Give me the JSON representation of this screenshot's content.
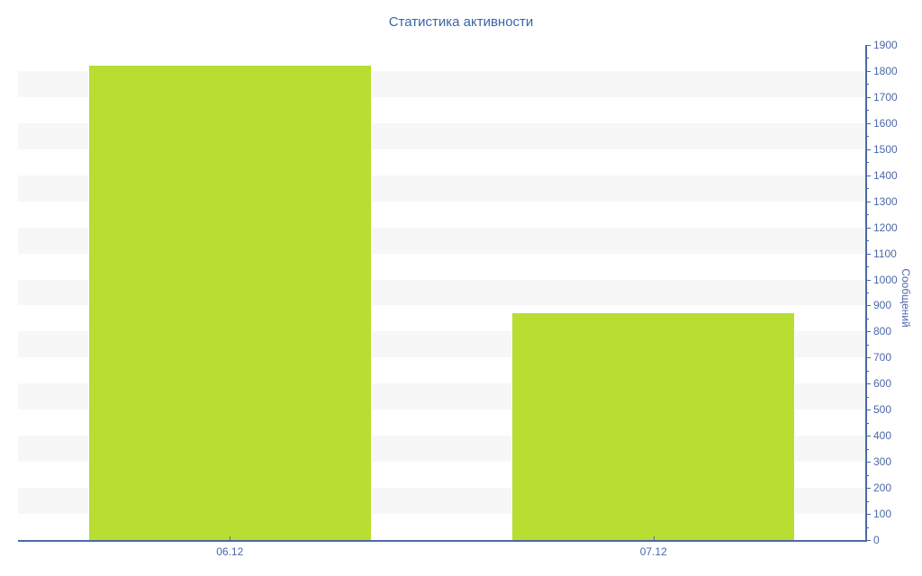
{
  "chart_data": {
    "type": "bar",
    "title": "Статистика активности",
    "categories": [
      "06.12",
      "07.12"
    ],
    "values": [
      1825,
      875
    ],
    "xlabel": "",
    "ylabel": "Сообщений",
    "ylim": [
      0,
      1900
    ],
    "ytick_interval": 100,
    "minor_ytick_interval": 50,
    "yticks": [
      0,
      100,
      200,
      300,
      400,
      500,
      600,
      700,
      800,
      900,
      1000,
      1100,
      1200,
      1300,
      1400,
      1500,
      1600,
      1700,
      1800,
      1900
    ],
    "legend": "none",
    "yaxis_position": "right",
    "grid": "alternating horizontal bands, light gray every other 100-unit interval starting at 1700-1800",
    "bar_width_fraction": 0.67,
    "colors": {
      "bar": "#b7de31",
      "axis": "#4a6aa4",
      "label": "#4c68a8",
      "title": "#3c63a8",
      "band": "#f7f7f8",
      "background": "#ffffff"
    }
  }
}
